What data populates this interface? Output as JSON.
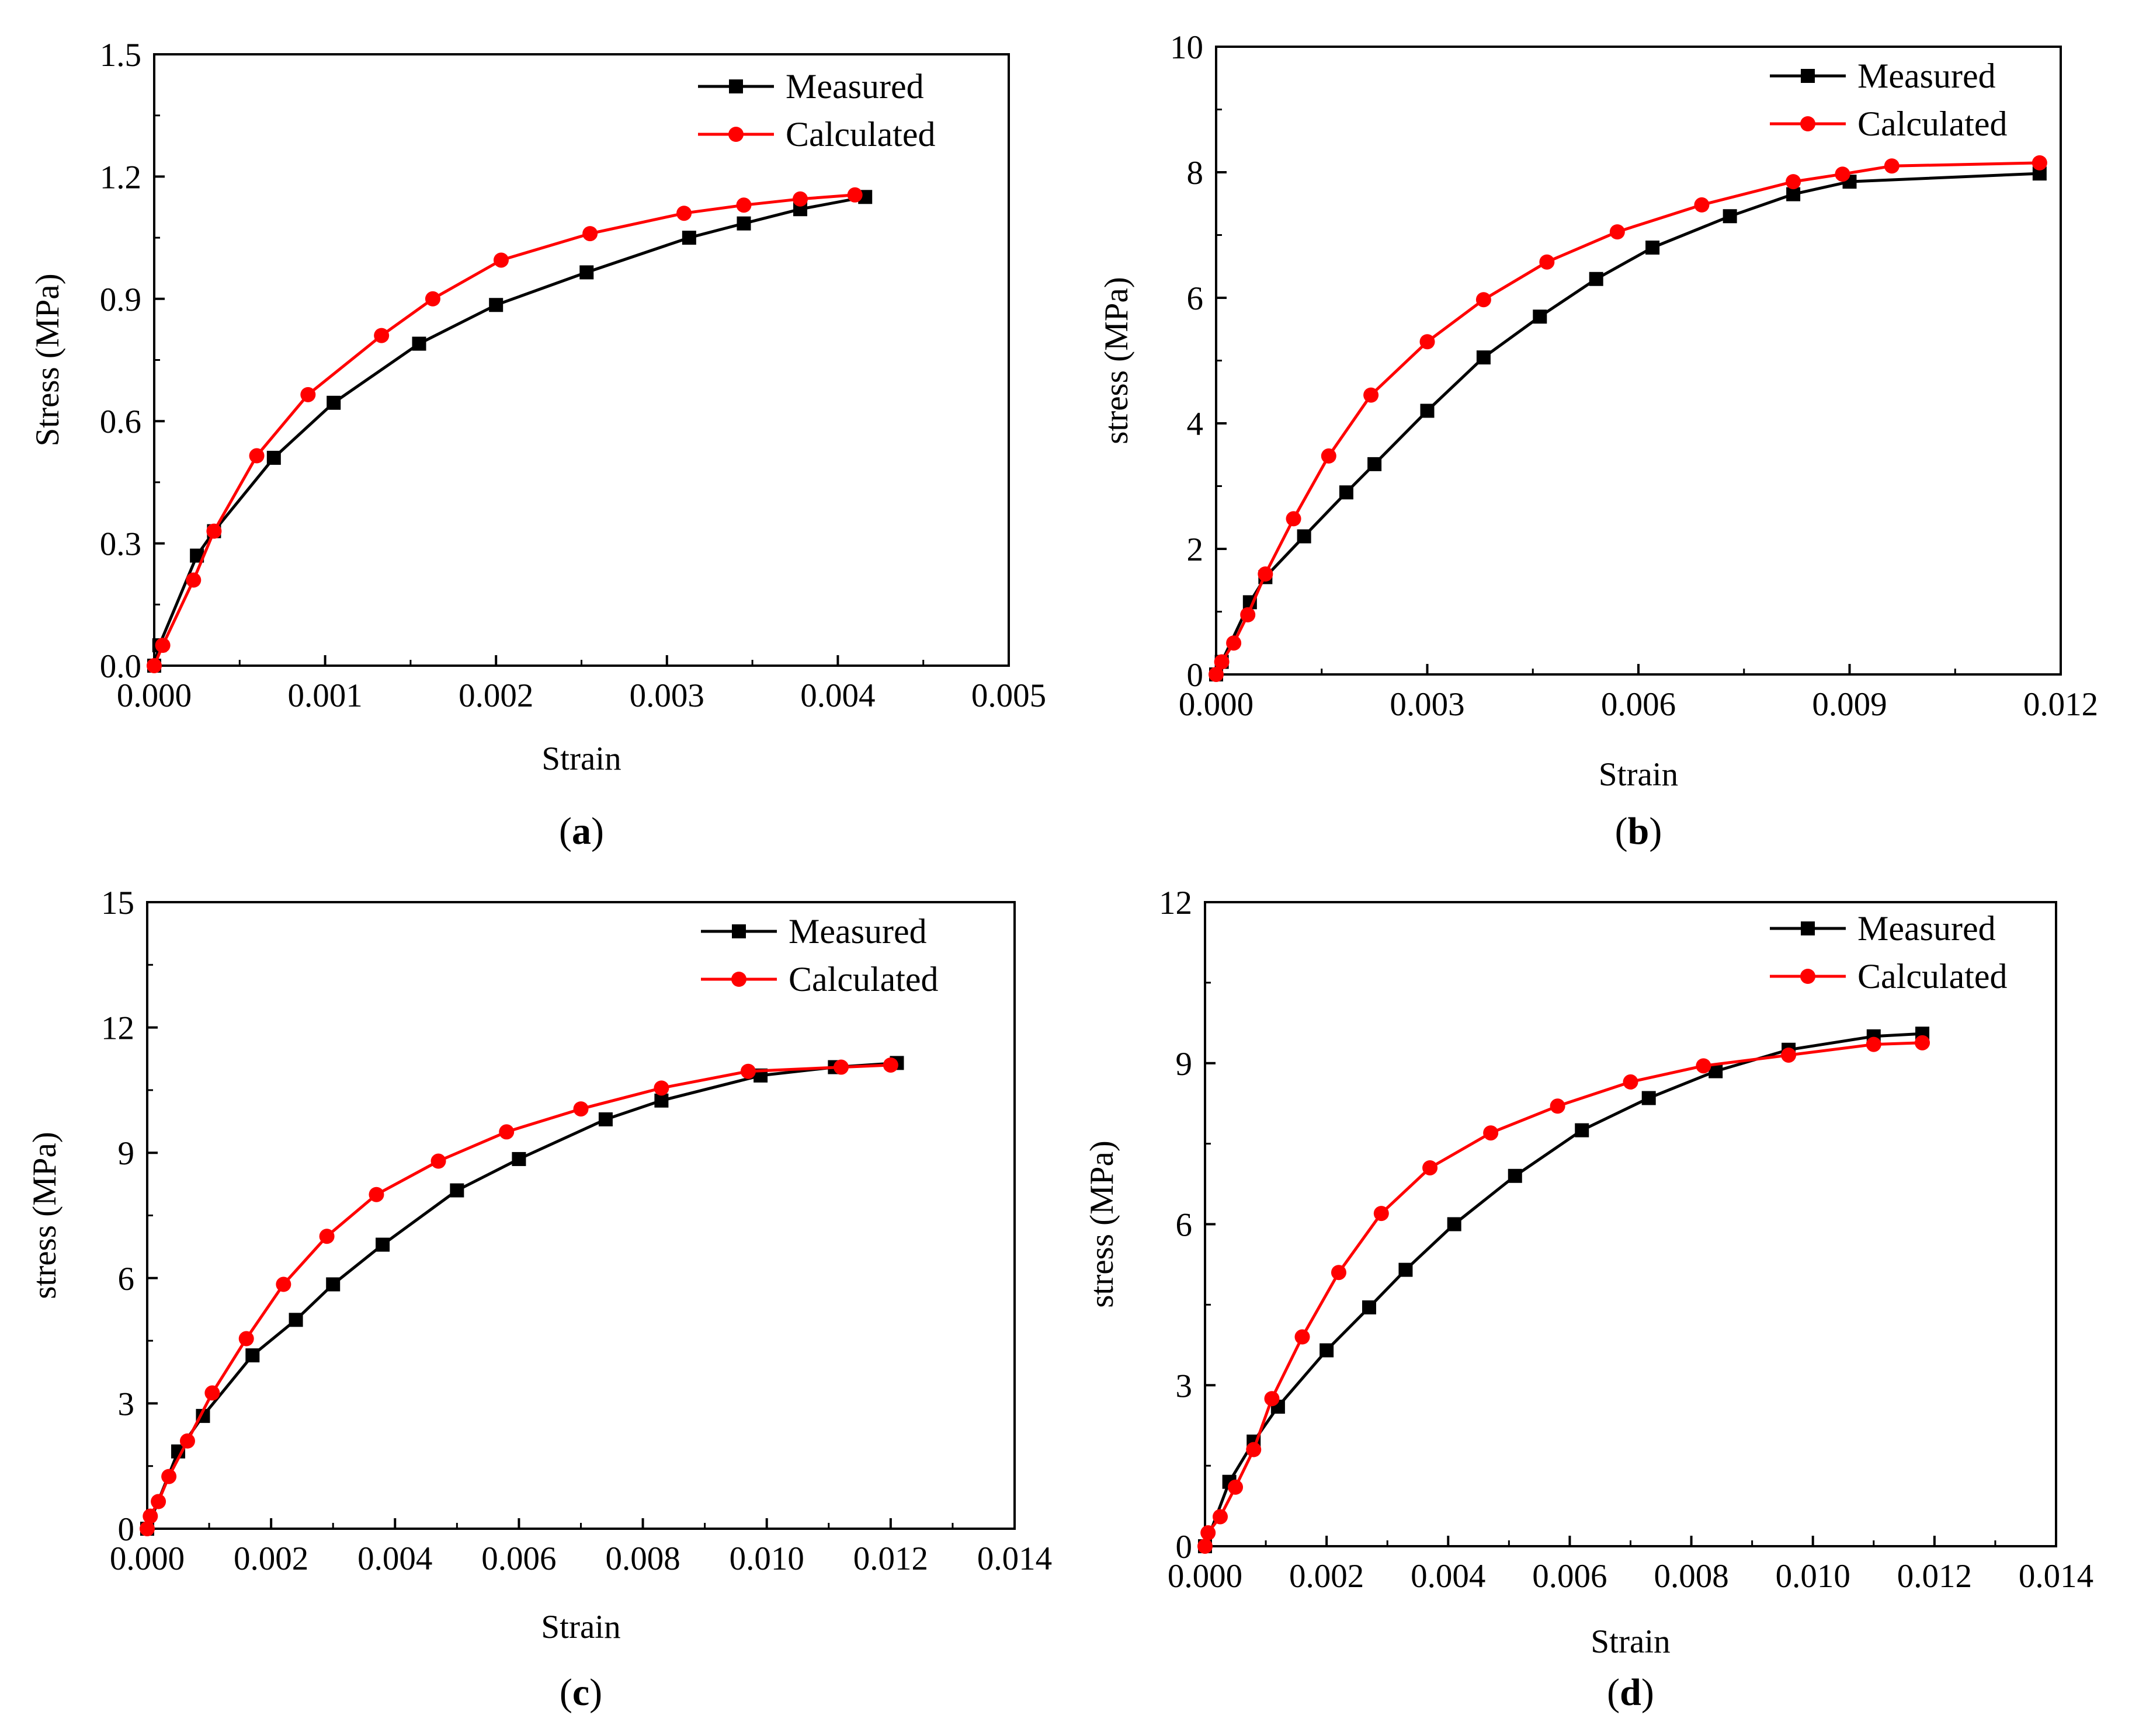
{
  "colors": {
    "measured": "#000000",
    "calculated": "#ff0000",
    "axis": "#000000"
  },
  "chart_data": [
    {
      "type": "line",
      "panel_label": "a",
      "xlabel": "Strain",
      "ylabel": "Stress (MPa)",
      "xlim": [
        0,
        0.005
      ],
      "ylim": [
        0,
        1.5
      ],
      "xticks": [
        "0.000",
        "0.001",
        "0.002",
        "0.003",
        "0.004",
        "0.005"
      ],
      "yticks": [
        "0.0",
        "0.3",
        "0.6",
        "0.9",
        "1.2",
        "1.5"
      ],
      "legend_position": "top-right",
      "series": [
        {
          "name": "Measured",
          "color": "#000000",
          "marker": "square",
          "x": [
            0,
            3e-05,
            0.00025,
            0.00035,
            0.0007,
            0.00105,
            0.00155,
            0.002,
            0.00253,
            0.00313,
            0.00345,
            0.00378,
            0.00416
          ],
          "y": [
            0,
            0.05,
            0.27,
            0.33,
            0.51,
            0.645,
            0.79,
            0.885,
            0.965,
            1.05,
            1.085,
            1.12,
            1.15
          ]
        },
        {
          "name": "Calculated",
          "color": "#ff0000",
          "marker": "circle",
          "x": [
            0,
            5e-05,
            0.00023,
            0.00035,
            0.0006,
            0.0009,
            0.00133,
            0.00163,
            0.00203,
            0.00255,
            0.0031,
            0.00345,
            0.00378,
            0.0041
          ],
          "y": [
            0,
            0.05,
            0.21,
            0.33,
            0.515,
            0.665,
            0.81,
            0.9,
            0.995,
            1.06,
            1.11,
            1.13,
            1.145,
            1.155
          ]
        }
      ]
    },
    {
      "type": "line",
      "panel_label": "b",
      "xlabel": "Strain",
      "ylabel": "stress (MPa)",
      "xlim": [
        0,
        0.012
      ],
      "ylim": [
        0,
        10
      ],
      "xticks": [
        "0.000",
        "0.003",
        "0.006",
        "0.009",
        "0.012"
      ],
      "yticks": [
        "0",
        "2",
        "4",
        "6",
        "8",
        "10"
      ],
      "legend_position": "top-right",
      "series": [
        {
          "name": "Measured",
          "color": "#000000",
          "marker": "square",
          "x": [
            0,
            8e-05,
            0.00048,
            0.0007,
            0.00125,
            0.00185,
            0.00225,
            0.003,
            0.0038,
            0.0046,
            0.0054,
            0.0062,
            0.0073,
            0.0082,
            0.009,
            0.0117
          ],
          "y": [
            0,
            0.2,
            1.15,
            1.55,
            2.2,
            2.9,
            3.35,
            4.2,
            5.05,
            5.7,
            6.3,
            6.8,
            7.3,
            7.65,
            7.85,
            7.98
          ]
        },
        {
          "name": "Calculated",
          "color": "#ff0000",
          "marker": "circle",
          "x": [
            0,
            8e-05,
            0.00025,
            0.00045,
            0.0007,
            0.0011,
            0.0016,
            0.0022,
            0.003,
            0.0038,
            0.0047,
            0.0057,
            0.0069,
            0.0082,
            0.0089,
            0.0096,
            0.0117
          ],
          "y": [
            0,
            0.2,
            0.5,
            0.95,
            1.6,
            2.48,
            3.48,
            4.45,
            5.3,
            5.97,
            6.57,
            7.05,
            7.48,
            7.85,
            7.97,
            8.1,
            8.15
          ]
        }
      ]
    },
    {
      "type": "line",
      "panel_label": "c",
      "xlabel": "Strain",
      "ylabel": "stress (MPa)",
      "xlim": [
        0,
        0.014
      ],
      "ylim": [
        0,
        15
      ],
      "xticks": [
        "0.000",
        "0.002",
        "0.004",
        "0.006",
        "0.008",
        "0.010",
        "0.012",
        "0.014"
      ],
      "yticks": [
        "0",
        "3",
        "6",
        "9",
        "12",
        "15"
      ],
      "legend_position": "top-right",
      "series": [
        {
          "name": "Measured",
          "color": "#000000",
          "marker": "square",
          "x": [
            0,
            0.0005,
            0.0009,
            0.0017,
            0.0024,
            0.003,
            0.0038,
            0.005,
            0.006,
            0.0074,
            0.0083,
            0.0099,
            0.0111,
            0.0121
          ],
          "y": [
            0,
            1.85,
            2.7,
            4.15,
            5.0,
            5.85,
            6.8,
            8.1,
            8.85,
            9.8,
            10.25,
            10.85,
            11.05,
            11.15
          ]
        },
        {
          "name": "Calculated",
          "color": "#ff0000",
          "marker": "circle",
          "x": [
            0,
            5e-05,
            0.00018,
            0.00035,
            0.00065,
            0.00105,
            0.0016,
            0.0022,
            0.0029,
            0.0037,
            0.0047,
            0.0058,
            0.007,
            0.0083,
            0.0097,
            0.0112,
            0.012
          ],
          "y": [
            0,
            0.3,
            0.65,
            1.25,
            2.1,
            3.25,
            4.55,
            5.85,
            7.0,
            8.0,
            8.8,
            9.5,
            10.05,
            10.55,
            10.95,
            11.05,
            11.1
          ]
        }
      ]
    },
    {
      "type": "line",
      "panel_label": "d",
      "xlabel": "Strain",
      "ylabel": "stress (MPa)",
      "xlim": [
        0,
        0.014
      ],
      "ylim": [
        0,
        12
      ],
      "xticks": [
        "0.000",
        "0.002",
        "0.004",
        "0.006",
        "0.008",
        "0.010",
        "0.012",
        "0.014"
      ],
      "yticks": [
        "0",
        "3",
        "6",
        "9",
        "12"
      ],
      "legend_position": "top-right",
      "series": [
        {
          "name": "Measured",
          "color": "#000000",
          "marker": "square",
          "x": [
            0,
            0.0004,
            0.0008,
            0.0012,
            0.002,
            0.0027,
            0.0033,
            0.0041,
            0.0051,
            0.0062,
            0.0073,
            0.0084,
            0.0096,
            0.011,
            0.0118
          ],
          "y": [
            0,
            1.2,
            1.95,
            2.6,
            3.65,
            4.45,
            5.15,
            6.0,
            6.9,
            7.75,
            8.35,
            8.85,
            9.25,
            9.5,
            9.55
          ]
        },
        {
          "name": "Calculated",
          "color": "#ff0000",
          "marker": "circle",
          "x": [
            0,
            5e-05,
            0.00025,
            0.0005,
            0.0008,
            0.0011,
            0.0016,
            0.0022,
            0.0029,
            0.0037,
            0.0047,
            0.0058,
            0.007,
            0.0082,
            0.0096,
            0.011,
            0.0118
          ],
          "y": [
            0,
            0.25,
            0.55,
            1.1,
            1.8,
            2.75,
            3.9,
            5.1,
            6.2,
            7.05,
            7.7,
            8.2,
            8.65,
            8.95,
            9.15,
            9.35,
            9.38
          ]
        }
      ]
    }
  ]
}
